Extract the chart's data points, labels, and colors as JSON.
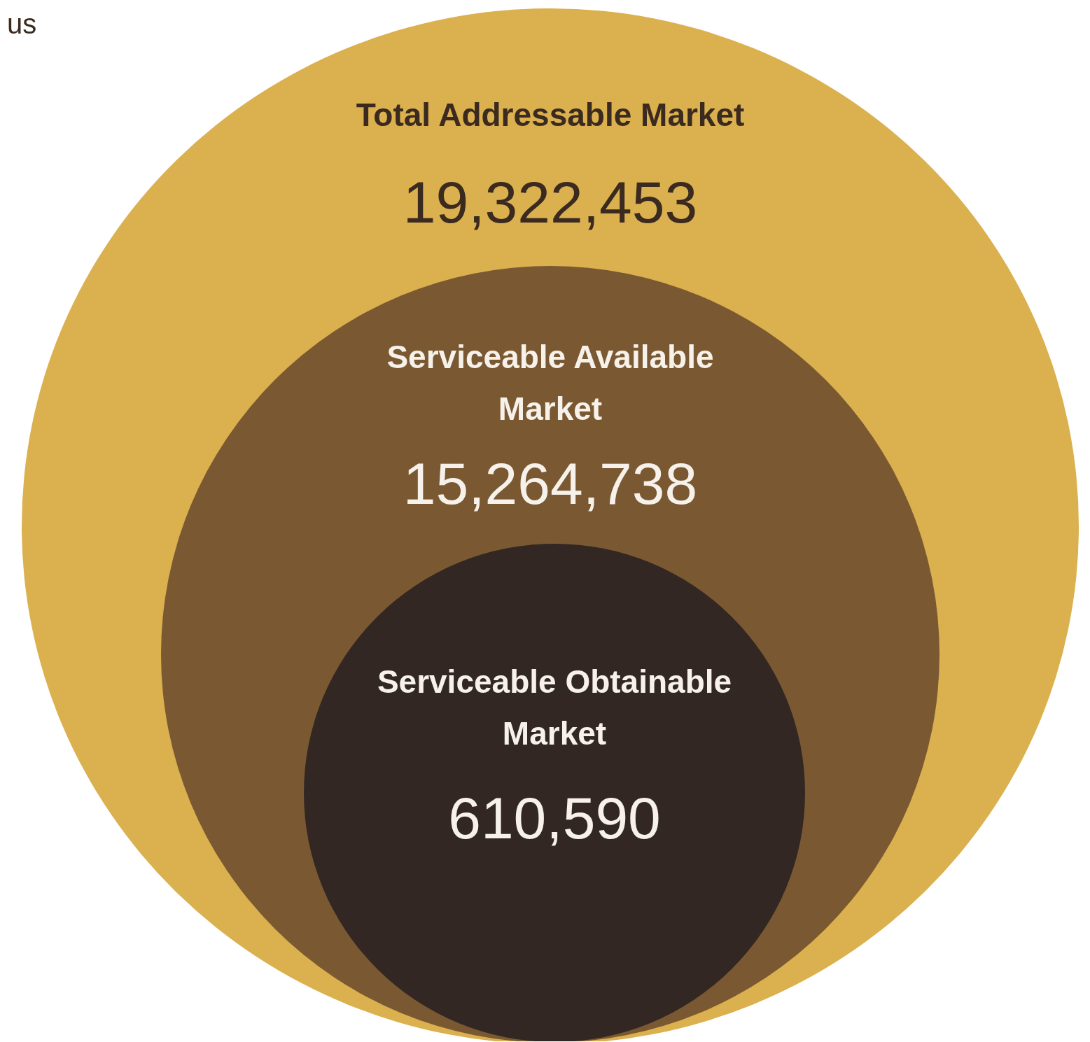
{
  "chart_data": {
    "type": "other",
    "categories": [
      "Total Addressable Market",
      "Serviceable Available Market",
      "Serviceable Obtainable Market"
    ],
    "values": [
      19322453,
      15264738,
      610590
    ],
    "value_labels": [
      "19,322,453",
      "15,264,738",
      "610,590"
    ],
    "colors": [
      "#dbb04e",
      "#7a5932",
      "#332723"
    ],
    "annotations": [
      "us"
    ]
  }
}
